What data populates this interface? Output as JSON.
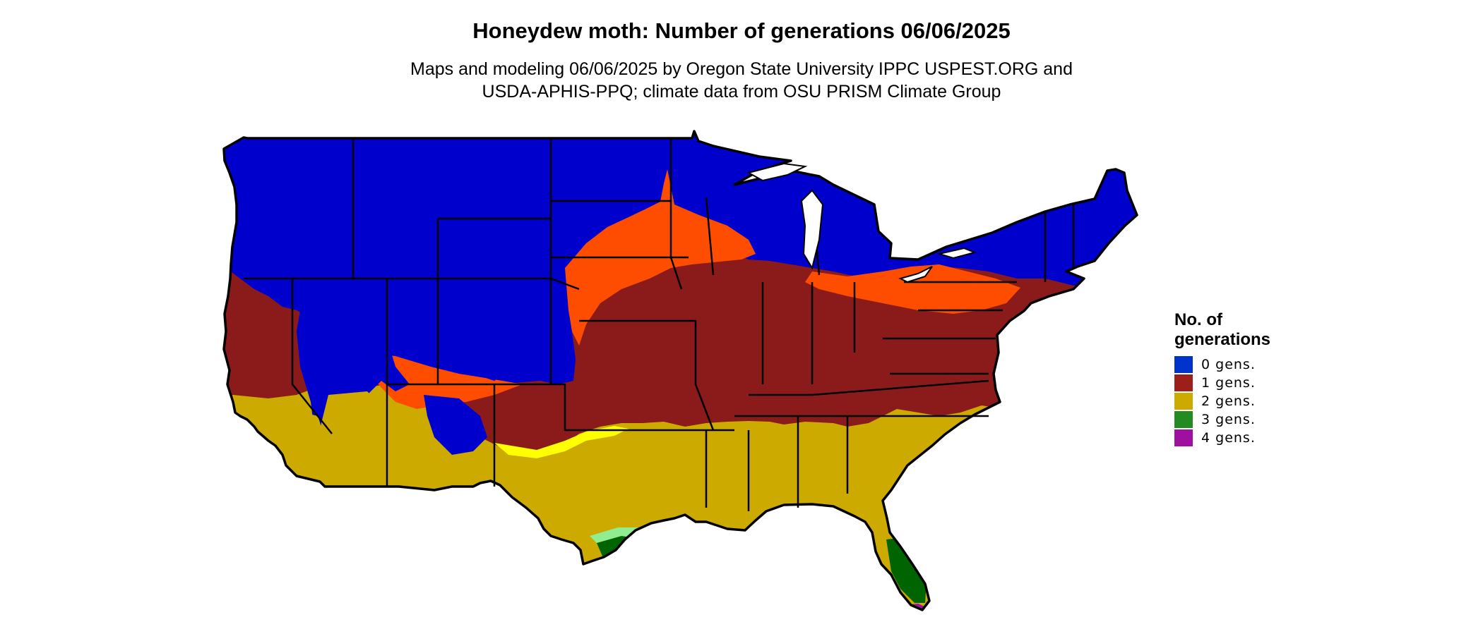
{
  "title": "Honeydew moth: Number of generations 06/06/2025",
  "subtitle_line1": "Maps and modeling 06/06/2025 by Oregon State University IPPC USPEST.ORG and",
  "subtitle_line2": "USDA-APHIS-PPQ; climate data from OSU PRISM Climate Group",
  "legend": {
    "title_line1": "No. of",
    "title_line2": "generations",
    "items": [
      {
        "label": "0 gens.",
        "color": "#0033cc"
      },
      {
        "label": "1 gens.",
        "color": "#9c1f1a"
      },
      {
        "label": "2 gens.",
        "color": "#cdaa00"
      },
      {
        "label": "3 gens.",
        "color": "#228b22"
      },
      {
        "label": "4 gens.",
        "color": "#a010a0"
      }
    ]
  },
  "map_colors": {
    "zero_gens": "#0000cc",
    "partial_orange": "#ff4d00",
    "one_gen": "#8b1a1a",
    "two_gens": "#cdaa00",
    "transition_yellow": "#ffff00",
    "three_gens": "#006400",
    "light_green": "#90ee90",
    "four_gens": "#a010a0"
  }
}
